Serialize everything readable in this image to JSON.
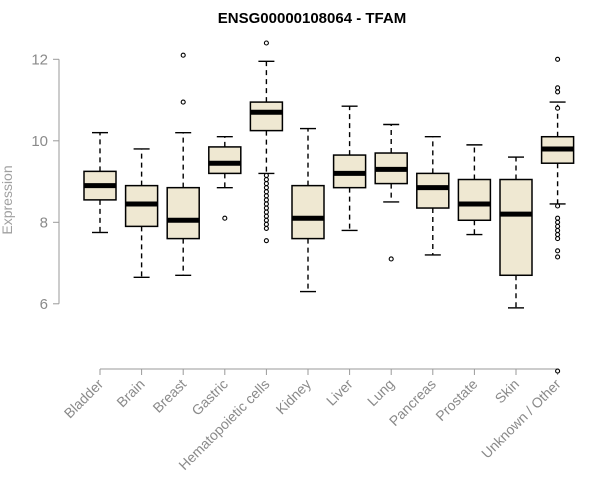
{
  "chart_data": {
    "type": "boxplot",
    "title": "ENSG00000108064 - TFAM",
    "xlabel": "",
    "ylabel": "Expression",
    "ylim": [
      4.4,
      12.4
    ],
    "yticks": [
      6,
      8,
      10,
      12
    ],
    "grid": false,
    "box_color": "#efe8d2",
    "categories": [
      "Bladder",
      "Brain",
      "Breast",
      "Gastric",
      "Hematopoietic cells",
      "Kidney",
      "Liver",
      "Lung",
      "Pancreas",
      "Prostate",
      "Skin",
      "Unknown / Other"
    ],
    "boxes": [
      {
        "category": "Bladder",
        "whisker_low": 7.75,
        "q1": 8.55,
        "median": 8.9,
        "q3": 9.25,
        "whisker_high": 10.2,
        "outliers": []
      },
      {
        "category": "Brain",
        "whisker_low": 6.65,
        "q1": 7.9,
        "median": 8.45,
        "q3": 8.9,
        "whisker_high": 9.8,
        "outliers": []
      },
      {
        "category": "Breast",
        "whisker_low": 6.7,
        "q1": 7.6,
        "median": 8.05,
        "q3": 8.85,
        "whisker_high": 10.2,
        "outliers": [
          10.95,
          12.1
        ]
      },
      {
        "category": "Gastric",
        "whisker_low": 8.85,
        "q1": 9.2,
        "median": 9.45,
        "q3": 9.85,
        "whisker_high": 10.1,
        "outliers": [
          8.1
        ]
      },
      {
        "category": "Hematopoietic cells",
        "whisker_low": 9.2,
        "q1": 10.25,
        "median": 10.7,
        "q3": 10.95,
        "whisker_high": 11.95,
        "outliers": [
          12.4,
          9.15,
          9.05,
          8.95,
          8.85,
          8.75,
          8.65,
          8.55,
          8.45,
          8.35,
          8.25,
          8.15,
          8.05,
          7.95,
          7.85,
          7.55
        ]
      },
      {
        "category": "Kidney",
        "whisker_low": 6.3,
        "q1": 7.6,
        "median": 8.1,
        "q3": 8.9,
        "whisker_high": 10.3,
        "outliers": []
      },
      {
        "category": "Liver",
        "whisker_low": 7.8,
        "q1": 8.85,
        "median": 9.2,
        "q3": 9.65,
        "whisker_high": 10.85,
        "outliers": []
      },
      {
        "category": "Lung",
        "whisker_low": 8.5,
        "q1": 8.95,
        "median": 9.3,
        "q3": 9.7,
        "whisker_high": 10.4,
        "outliers": [
          7.1
        ]
      },
      {
        "category": "Pancreas",
        "whisker_low": 7.2,
        "q1": 8.35,
        "median": 8.85,
        "q3": 9.2,
        "whisker_high": 10.1,
        "outliers": []
      },
      {
        "category": "Prostate",
        "whisker_low": 7.7,
        "q1": 8.05,
        "median": 8.45,
        "q3": 9.05,
        "whisker_high": 9.9,
        "outliers": []
      },
      {
        "category": "Skin",
        "whisker_low": 5.9,
        "q1": 6.7,
        "median": 8.2,
        "q3": 9.05,
        "whisker_high": 9.6,
        "outliers": []
      },
      {
        "category": "Unknown / Other",
        "whisker_low": 8.45,
        "q1": 9.45,
        "median": 9.8,
        "q3": 10.1,
        "whisker_high": 10.95,
        "outliers": [
          12.0,
          11.3,
          11.2,
          10.8,
          8.4,
          8.1,
          8.0,
          7.9,
          7.8,
          7.7,
          7.6,
          7.3,
          7.15,
          4.35
        ]
      }
    ]
  }
}
